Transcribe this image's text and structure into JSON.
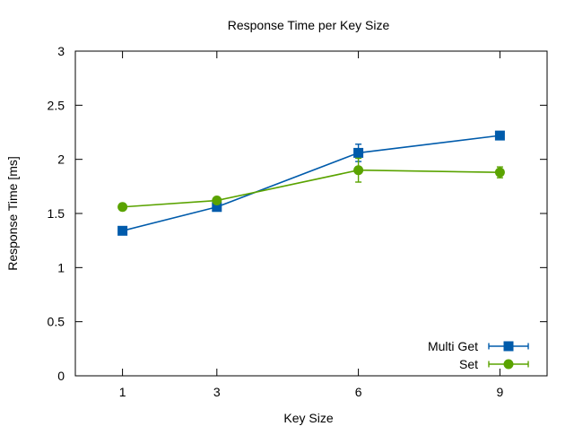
{
  "chart_data": {
    "type": "line",
    "title": "Response Time per Key Size",
    "xlabel": "Key Size",
    "ylabel": "Response Time [ms]",
    "x": [
      1,
      3,
      6,
      9
    ],
    "x_tick_labels": [
      "1",
      "3",
      "6",
      "9"
    ],
    "xlim": [
      0,
      10
    ],
    "ylim": [
      0,
      3
    ],
    "y_ticks": [
      0,
      0.5,
      1,
      1.5,
      2,
      2.5,
      3
    ],
    "y_tick_labels": [
      "0",
      "0.5",
      "1",
      "1.5",
      "2",
      "2.5",
      "3"
    ],
    "grid": false,
    "legend_position": "bottom-right",
    "series": [
      {
        "name": "Multi Get",
        "color": "#005bab",
        "marker": "square",
        "values": [
          1.34,
          1.56,
          2.06,
          2.22
        ],
        "errors": [
          0.0,
          0.02,
          0.08,
          0.0
        ]
      },
      {
        "name": "Set",
        "color": "#5aa300",
        "marker": "circle",
        "values": [
          1.56,
          1.62,
          1.9,
          1.88
        ],
        "errors": [
          0.0,
          0.02,
          0.11,
          0.05
        ]
      }
    ]
  }
}
